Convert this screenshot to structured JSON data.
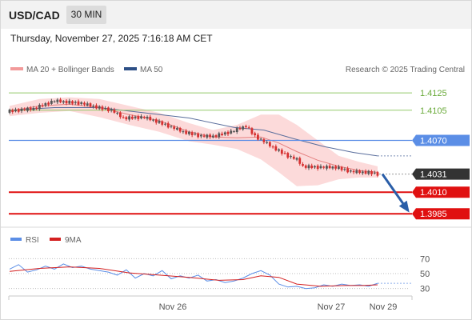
{
  "header": {
    "symbol": "USD/CAD",
    "timeframe": "30 MIN",
    "datetime": "Thursday, November 27, 2025 7:16:18 AM CET"
  },
  "legend": {
    "ma20_label": "MA 20 + Bollinger Bands",
    "ma50_label": "MA 50",
    "credit": "Research © 2025 Trading Central",
    "rsi_label": "RSI",
    "ma9_label": "9MA"
  },
  "colors": {
    "up_candle": "#555555",
    "down_candle": "#d63030",
    "bands": "#fbd3d3",
    "ma20": "#e48080",
    "ma50": "#5a6e9c",
    "pivot_line": "#5b8ee6",
    "support": "#e01010",
    "resistance": "#93c96a",
    "arrow": "#2a5ea8",
    "rsi": "#5b8ee6",
    "rsi_ma": "#d42020",
    "price_tag": "#333333"
  },
  "levels": [
    {
      "value": 1.4125,
      "label": "1.4125",
      "kind": "resistance"
    },
    {
      "value": 1.4105,
      "label": "1.4105",
      "kind": "resistance"
    },
    {
      "value": 1.407,
      "label": "1.4070",
      "kind": "pivot"
    },
    {
      "value": 1.4031,
      "label": "1.4031",
      "kind": "last"
    },
    {
      "value": 1.401,
      "label": "1.4010",
      "kind": "support"
    },
    {
      "value": 1.3985,
      "label": "1.3985",
      "kind": "support"
    }
  ],
  "chart_data": [
    {
      "type": "candlestick",
      "title": "USD/CAD",
      "timeframe": "30 MIN",
      "x_ticks": [
        "Nov 26",
        "Nov 27",
        "Nov 29"
      ],
      "ylim": [
        1.3975,
        1.414
      ],
      "last_price": 1.4031,
      "close_path": [
        [
          0,
          1.4104
        ],
        [
          8,
          1.4107
        ],
        [
          15,
          1.4116
        ],
        [
          24,
          1.4113
        ],
        [
          30,
          1.4108
        ],
        [
          34,
          1.4105
        ],
        [
          38,
          1.4096
        ],
        [
          45,
          1.4097
        ],
        [
          50,
          1.4091
        ],
        [
          58,
          1.408
        ],
        [
          64,
          1.4075
        ],
        [
          68,
          1.4075
        ],
        [
          74,
          1.408
        ],
        [
          79,
          1.4087
        ],
        [
          82,
          1.4075
        ],
        [
          89,
          1.406
        ],
        [
          93,
          1.4052
        ],
        [
          96,
          1.4048
        ],
        [
          98,
          1.404
        ],
        [
          103,
          1.4039
        ],
        [
          109,
          1.4039
        ],
        [
          114,
          1.4034
        ],
        [
          120,
          1.4033
        ],
        [
          123,
          1.4031
        ]
      ],
      "ma20": [
        [
          0,
          1.4104
        ],
        [
          10,
          1.411
        ],
        [
          20,
          1.4112
        ],
        [
          30,
          1.4108
        ],
        [
          40,
          1.41
        ],
        [
          50,
          1.4093
        ],
        [
          60,
          1.408
        ],
        [
          68,
          1.4074
        ],
        [
          76,
          1.4073
        ],
        [
          84,
          1.4074
        ],
        [
          90,
          1.4067
        ],
        [
          96,
          1.4057
        ],
        [
          103,
          1.4047
        ],
        [
          110,
          1.404
        ],
        [
          117,
          1.4035
        ],
        [
          123,
          1.4033
        ]
      ],
      "bb_upper": [
        [
          0,
          1.411
        ],
        [
          10,
          1.4118
        ],
        [
          20,
          1.412
        ],
        [
          30,
          1.4118
        ],
        [
          40,
          1.411
        ],
        [
          50,
          1.4102
        ],
        [
          60,
          1.409
        ],
        [
          68,
          1.4082
        ],
        [
          76,
          1.4088
        ],
        [
          84,
          1.41
        ],
        [
          90,
          1.41
        ],
        [
          96,
          1.4088
        ],
        [
          103,
          1.407
        ],
        [
          110,
          1.4052
        ],
        [
          117,
          1.4045
        ],
        [
          123,
          1.404
        ]
      ],
      "bb_lower": [
        [
          0,
          1.4098
        ],
        [
          10,
          1.4102
        ],
        [
          20,
          1.4104
        ],
        [
          30,
          1.4097
        ],
        [
          40,
          1.4088
        ],
        [
          50,
          1.408
        ],
        [
          60,
          1.4069
        ],
        [
          68,
          1.4065
        ],
        [
          76,
          1.406
        ],
        [
          84,
          1.4048
        ],
        [
          90,
          1.4033
        ],
        [
          96,
          1.4017
        ],
        [
          103,
          1.4018
        ],
        [
          110,
          1.4025
        ],
        [
          117,
          1.4027
        ],
        [
          123,
          1.4027
        ]
      ],
      "ma50": [
        [
          0,
          1.4105
        ],
        [
          15,
          1.4108
        ],
        [
          30,
          1.4108
        ],
        [
          45,
          1.4102
        ],
        [
          60,
          1.4096
        ],
        [
          75,
          1.4085
        ],
        [
          85,
          1.4082
        ],
        [
          95,
          1.4072
        ],
        [
          105,
          1.4063
        ],
        [
          115,
          1.4056
        ],
        [
          123,
          1.4052
        ]
      ],
      "forecast_arrow": {
        "from": 1.4031,
        "to": 1.3985
      }
    },
    {
      "type": "line",
      "series": [
        {
          "name": "RSI"
        },
        {
          "name": "9MA"
        }
      ],
      "y_ticks": [
        "70",
        "50",
        "30"
      ],
      "ylim": [
        20,
        80
      ],
      "rsi": [
        [
          0,
          56
        ],
        [
          3,
          62
        ],
        [
          6,
          52
        ],
        [
          9,
          55
        ],
        [
          12,
          60
        ],
        [
          15,
          56
        ],
        [
          18,
          63
        ],
        [
          21,
          58
        ],
        [
          24,
          60
        ],
        [
          27,
          56
        ],
        [
          30,
          54
        ],
        [
          33,
          52
        ],
        [
          36,
          48
        ],
        [
          39,
          55
        ],
        [
          42,
          44
        ],
        [
          45,
          50
        ],
        [
          48,
          47
        ],
        [
          51,
          54
        ],
        [
          54,
          43
        ],
        [
          57,
          47
        ],
        [
          60,
          44
        ],
        [
          63,
          48
        ],
        [
          66,
          40
        ],
        [
          69,
          42
        ],
        [
          72,
          38
        ],
        [
          75,
          40
        ],
        [
          78,
          44
        ],
        [
          81,
          50
        ],
        [
          84,
          54
        ],
        [
          87,
          48
        ],
        [
          90,
          36
        ],
        [
          93,
          32
        ],
        [
          96,
          33
        ],
        [
          99,
          30
        ],
        [
          102,
          31
        ],
        [
          105,
          35
        ],
        [
          108,
          33
        ],
        [
          111,
          36
        ],
        [
          114,
          34
        ],
        [
          117,
          35
        ],
        [
          120,
          33
        ],
        [
          123,
          37
        ]
      ],
      "rsi_ma": [
        [
          0,
          53
        ],
        [
          10,
          57
        ],
        [
          20,
          59
        ],
        [
          30,
          57
        ],
        [
          40,
          51
        ],
        [
          50,
          48
        ],
        [
          60,
          45
        ],
        [
          70,
          41
        ],
        [
          78,
          42
        ],
        [
          84,
          47
        ],
        [
          90,
          45
        ],
        [
          96,
          36
        ],
        [
          104,
          33
        ],
        [
          112,
          34
        ],
        [
          118,
          34
        ],
        [
          123,
          35
        ]
      ]
    }
  ]
}
